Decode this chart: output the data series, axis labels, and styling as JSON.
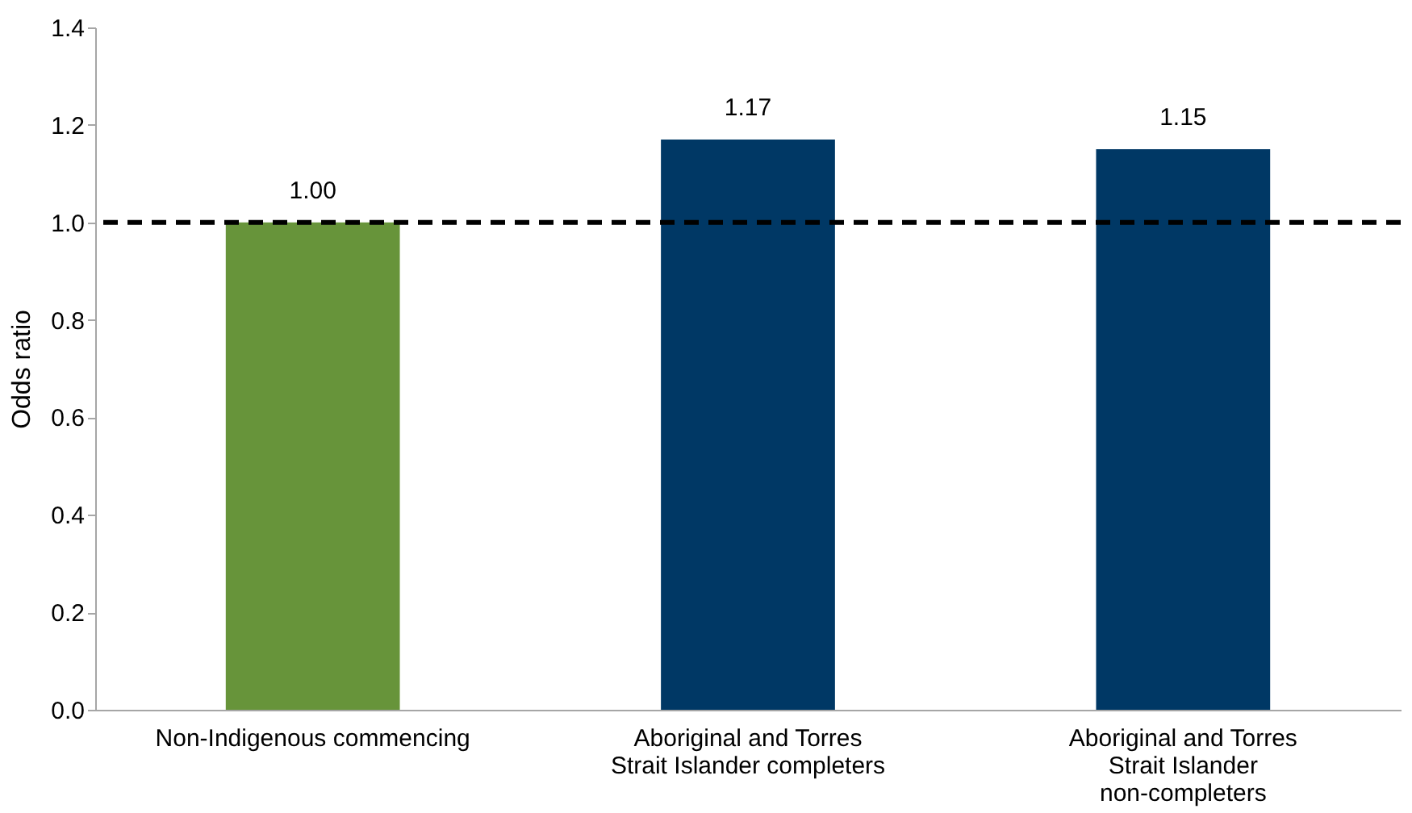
{
  "chart_data": {
    "type": "bar",
    "ylabel": "Odds ratio",
    "categories": [
      "Non-Indigenous commencing",
      "Aboriginal and Torres Strait Islander completers",
      "Aboriginal and Torres Strait Islander non-completers"
    ],
    "values": [
      1.0,
      1.17,
      1.15
    ],
    "colors": [
      "#67943a",
      "#003865",
      "#003865"
    ],
    "value_labels": [
      "1.00",
      "1.17",
      "1.15"
    ],
    "ylim": [
      0,
      1.4
    ],
    "yticks": [
      {
        "value": 0,
        "label": "0.0"
      },
      0.2,
      0.4,
      0.6,
      0.8,
      {
        "value": 1,
        "label": "1.0"
      },
      1.2,
      1.4
    ],
    "ref_lines": [
      {
        "axis": "y",
        "value": 1,
        "line_style": "dashed",
        "color": "#000000"
      }
    ],
    "grid": false
  }
}
